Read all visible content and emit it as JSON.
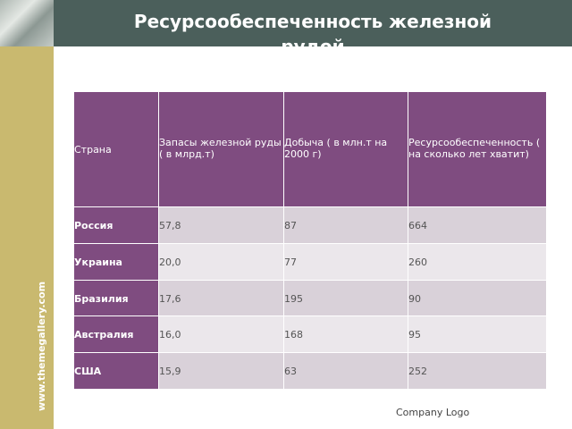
{
  "header": {
    "title": "Ресурсообеспеченность железной рудой"
  },
  "sidebar_text": "www.themegallery.com",
  "footer": "Company Logo",
  "table": {
    "columns": [
      "Страна",
      "Запасы железной руды  ( в млрд.т)",
      "Добыча ( в млн.т на 2000 г)",
      "Ресурсообеспеченность ( на сколько лет хватит)"
    ],
    "rows": [
      [
        "Россия",
        "57,8",
        "87",
        "664"
      ],
      [
        "Украина",
        "20,0",
        "77",
        "260"
      ],
      [
        "Бразилия",
        "17,6",
        "195",
        "90"
      ],
      [
        "Австралия",
        "16,0",
        "168",
        "95"
      ],
      [
        "США",
        "15,9",
        "63",
        "252"
      ]
    ]
  }
}
